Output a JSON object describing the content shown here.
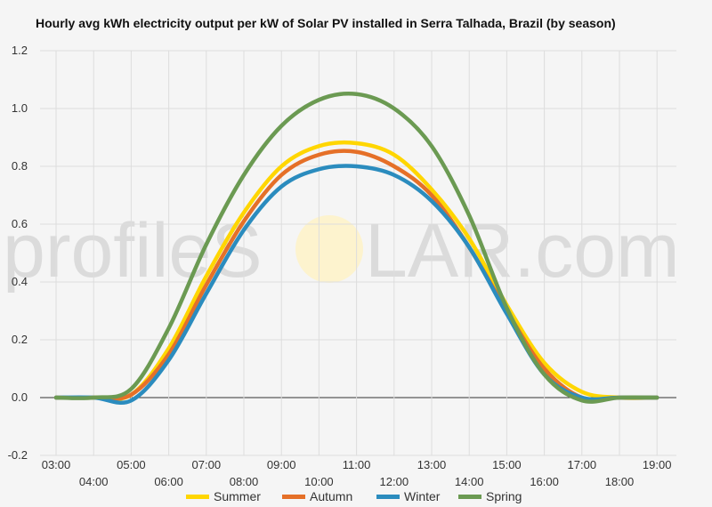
{
  "chart_data": {
    "type": "line",
    "title": "Hourly avg kWh electricity output per kW of Solar PV installed in Serra Talhada, Brazil (by season)",
    "xlabel": "",
    "ylabel": "",
    "ylim": [
      -0.2,
      1.2
    ],
    "yticks": [
      "-0.2",
      "0.0",
      "0.2",
      "0.4",
      "0.6",
      "0.8",
      "1.0",
      "1.2"
    ],
    "x": [
      "03:00",
      "04:00",
      "05:00",
      "06:00",
      "07:00",
      "08:00",
      "09:00",
      "10:00",
      "11:00",
      "12:00",
      "13:00",
      "14:00",
      "15:00",
      "16:00",
      "17:00",
      "18:00",
      "19:00"
    ],
    "grid": true,
    "legend_position": "bottom",
    "series": [
      {
        "name": "Summer",
        "color": "#ffd600",
        "values": [
          0,
          0,
          0.01,
          0.17,
          0.42,
          0.64,
          0.8,
          0.87,
          0.88,
          0.84,
          0.72,
          0.55,
          0.32,
          0.12,
          0.02,
          0,
          0
        ]
      },
      {
        "name": "Autumn",
        "color": "#e57028",
        "values": [
          0,
          0,
          0.01,
          0.15,
          0.39,
          0.61,
          0.77,
          0.84,
          0.85,
          0.8,
          0.7,
          0.52,
          0.3,
          0.1,
          0,
          0,
          0
        ]
      },
      {
        "name": "Winter",
        "color": "#2b8cbe",
        "values": [
          0,
          0,
          -0.01,
          0.13,
          0.36,
          0.58,
          0.73,
          0.79,
          0.8,
          0.77,
          0.68,
          0.52,
          0.29,
          0.08,
          0,
          0,
          0
        ]
      },
      {
        "name": "Spring",
        "color": "#6b9a52",
        "values": [
          0,
          0,
          0.03,
          0.24,
          0.53,
          0.77,
          0.94,
          1.03,
          1.05,
          1.0,
          0.87,
          0.63,
          0.31,
          0.08,
          -0.01,
          0,
          0
        ]
      }
    ]
  },
  "watermark": {
    "text_left": "profileS",
    "text_right": "LAR.com",
    "sun_color": "#fff3c4"
  }
}
